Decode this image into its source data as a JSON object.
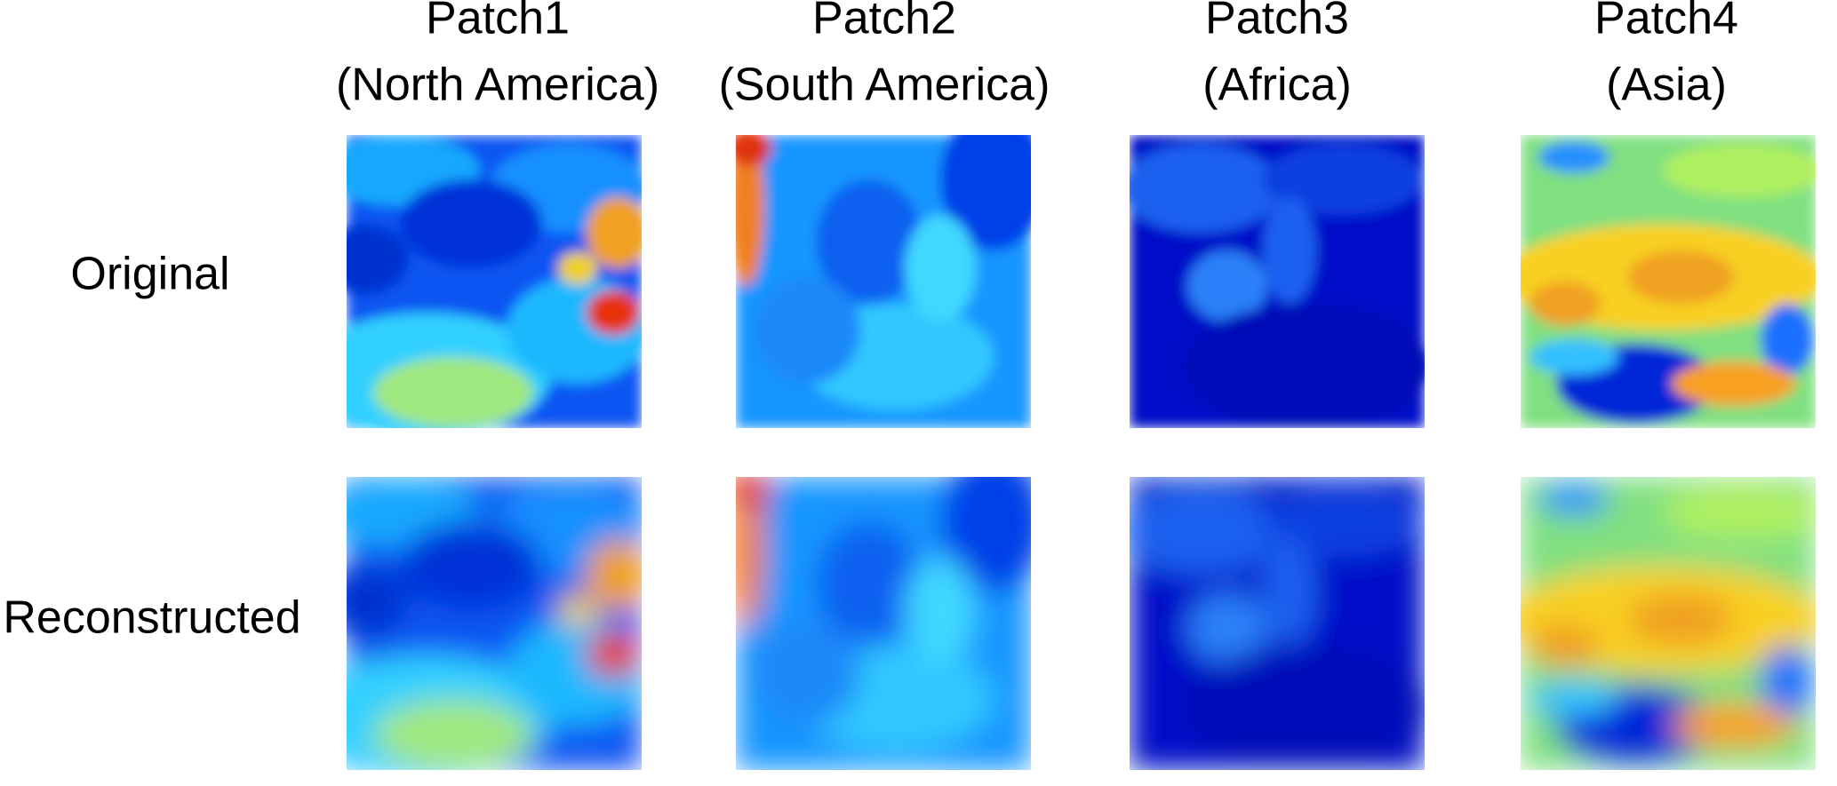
{
  "columns": [
    {
      "title": "Patch1",
      "subtitle": "(North America)"
    },
    {
      "title": "Patch2",
      "subtitle": "(South America)"
    },
    {
      "title": "Patch3",
      "subtitle": "(Africa)"
    },
    {
      "title": "Patch4",
      "subtitle": "(Asia)"
    }
  ],
  "rows": [
    "Original",
    "Reconstructed"
  ]
}
